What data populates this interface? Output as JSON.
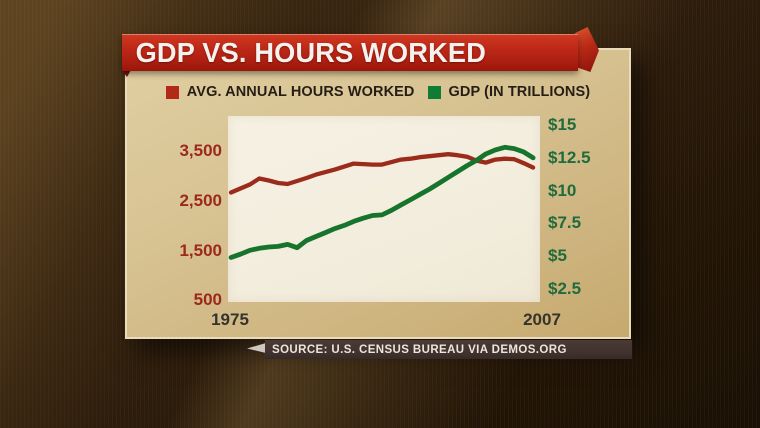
{
  "title": "GDP VS. HOURS WORKED",
  "legend": [
    {
      "label": "AVG. ANNUAL HOURS WORKED",
      "color": "#b32917"
    },
    {
      "label": "GDP (IN TRILLIONS)",
      "color": "#0e7d33"
    }
  ],
  "source": "SOURCE: U.S. CENSUS BUREAU VIA DEMOS.ORG",
  "colors": {
    "banner_red": "#b02115",
    "card_tan": "#d5c292",
    "plot_cream": "#f3eddf",
    "hours_line": "#9b2b1a",
    "gdp_line": "#17742c",
    "left_axis_text": "#9c291c",
    "right_axis_text": "#1f6b3c",
    "source_bar": "#423330"
  },
  "chart_data": {
    "type": "line",
    "title": "GDP VS. HOURS WORKED",
    "x": [
      1975,
      1976,
      1977,
      1978,
      1979,
      1980,
      1981,
      1982,
      1983,
      1984,
      1985,
      1986,
      1987,
      1988,
      1989,
      1990,
      1991,
      1992,
      1993,
      1994,
      1995,
      1996,
      1997,
      1998,
      1999,
      2000,
      2001,
      2002,
      2003,
      2004,
      2005,
      2006,
      2007
    ],
    "x_ticks": [
      "1975",
      "2007"
    ],
    "series": [
      {
        "name": "AVG. ANNUAL HOURS WORKED",
        "axis": "left",
        "color": "#9b2b1a",
        "values": [
          2670,
          2750,
          2830,
          2950,
          2910,
          2860,
          2840,
          2900,
          2960,
          3030,
          3080,
          3130,
          3190,
          3250,
          3240,
          3230,
          3230,
          3280,
          3330,
          3350,
          3380,
          3400,
          3420,
          3440,
          3420,
          3390,
          3310,
          3270,
          3330,
          3350,
          3340,
          3260,
          3170
        ]
      },
      {
        "name": "GDP (IN TRILLIONS)",
        "axis": "right",
        "color": "#17742c",
        "values": [
          4.9,
          5.15,
          5.45,
          5.6,
          5.7,
          5.75,
          5.9,
          5.65,
          6.2,
          6.5,
          6.8,
          7.1,
          7.35,
          7.65,
          7.9,
          8.1,
          8.15,
          8.5,
          8.9,
          9.3,
          9.7,
          10.1,
          10.55,
          11.0,
          11.45,
          11.9,
          12.3,
          12.8,
          13.1,
          13.3,
          13.2,
          12.95,
          12.5
        ]
      }
    ],
    "left_axis": {
      "ticks": [
        3500,
        2500,
        1500,
        500
      ],
      "labels": [
        "3,500",
        "2,500",
        "1,500",
        "500"
      ],
      "color": "#9c291c"
    },
    "right_axis": {
      "ticks": [
        15,
        12.5,
        10,
        7.5,
        5,
        2.5
      ],
      "labels": [
        "$15",
        "$12.5",
        "$10",
        "$7.5",
        "$5",
        "$2.5"
      ],
      "color": "#1f6b3c"
    },
    "grid": false,
    "legend_position": "top"
  }
}
